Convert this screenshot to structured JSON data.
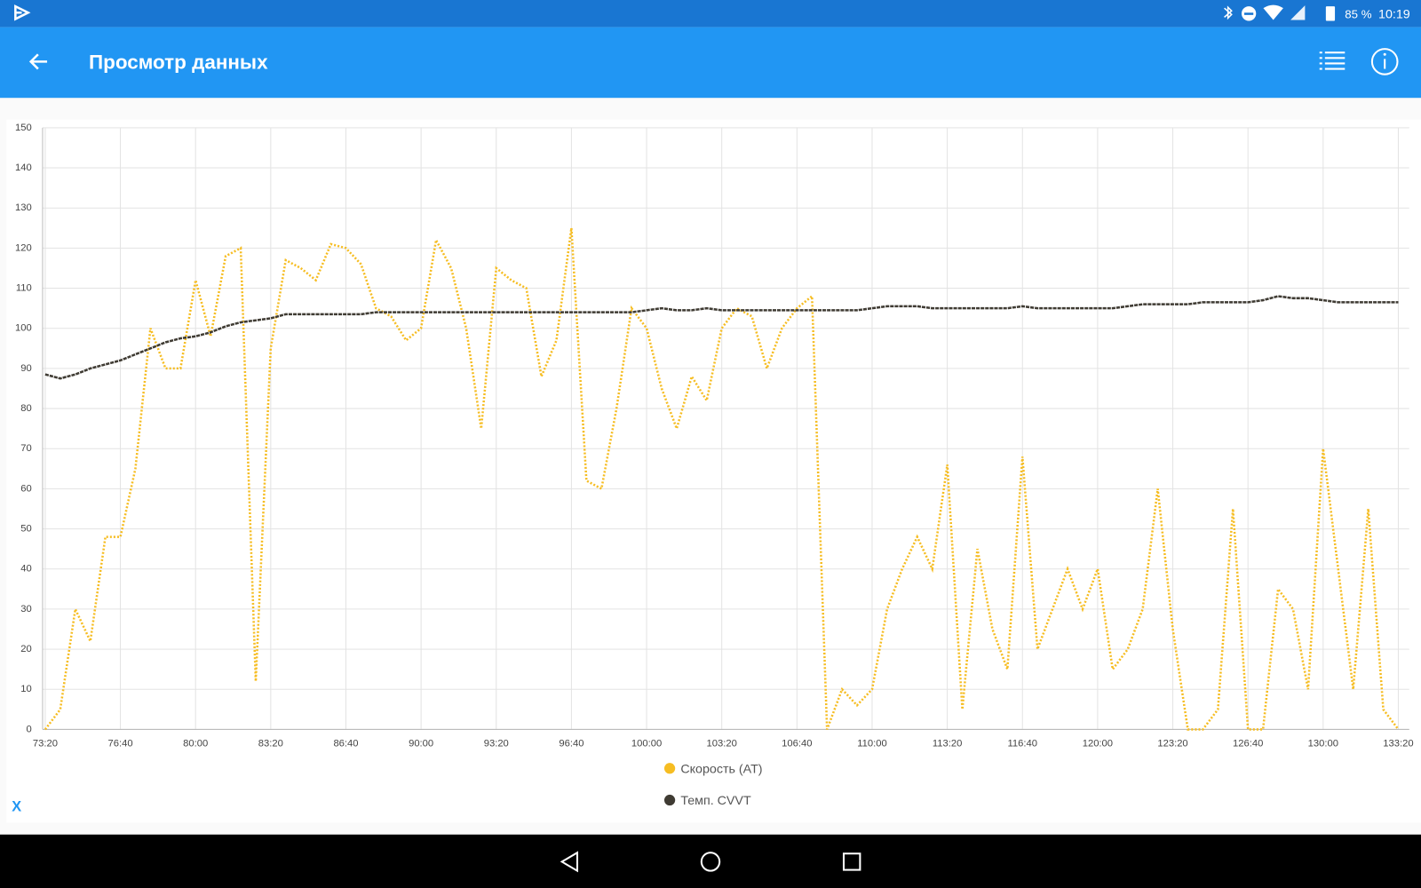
{
  "status_bar": {
    "battery": "85 %",
    "time": "10:19"
  },
  "app_bar": {
    "title": "Просмотр данных"
  },
  "chart_data": {
    "type": "line",
    "x": [
      4400,
      4440,
      4480,
      4520,
      4560,
      4600,
      4640,
      4680,
      4720,
      4760,
      4800,
      4840,
      4880,
      4920,
      4960,
      5000,
      5040,
      5080,
      5120,
      5160,
      5200,
      5240,
      5280,
      5320,
      5360,
      5400,
      5440,
      5480,
      5520,
      5560,
      5600,
      5640,
      5680,
      5720,
      5760,
      5800,
      5840,
      5880,
      5920,
      5960,
      6000,
      6040,
      6080,
      6120,
      6160,
      6200,
      6240,
      6280,
      6320,
      6360,
      6400,
      6440,
      6480,
      6520,
      6560,
      6600,
      6640,
      6680,
      6720,
      6760,
      6800,
      6840,
      6880,
      6920,
      6960,
      7000,
      7040,
      7080,
      7120,
      7160,
      7200,
      7240,
      7280,
      7320,
      7360,
      7400,
      7440,
      7480,
      7520,
      7560,
      7600,
      7640,
      7680,
      7720,
      7760,
      7800,
      7840,
      7880,
      7920,
      7960,
      8000
    ],
    "series": [
      {
        "name": "Скорость (AT)",
        "color": "#f6bd22",
        "values": [
          0,
          5,
          30,
          22,
          48,
          48,
          65,
          100,
          90,
          90,
          112,
          98,
          118,
          120,
          12,
          95,
          117,
          115,
          112,
          121,
          120,
          116,
          105,
          103,
          97,
          100,
          122,
          115,
          100,
          75,
          115,
          112,
          110,
          88,
          97,
          125,
          62,
          60,
          80,
          105,
          100,
          85,
          75,
          88,
          82,
          100,
          105,
          103,
          90,
          100,
          105,
          108,
          0,
          10,
          6,
          10,
          30,
          40,
          48,
          40,
          66,
          5,
          45,
          25,
          15,
          68,
          20,
          30,
          40,
          30,
          40,
          15,
          20,
          30,
          60,
          25,
          0,
          0,
          5,
          55,
          0,
          0,
          35,
          30,
          10,
          70,
          40,
          10,
          55,
          5,
          0
        ]
      },
      {
        "name": "Темп. CVVT",
        "color": "#3f3b33",
        "values": [
          88.5,
          87.5,
          88.5,
          90,
          91,
          92,
          93.5,
          95,
          96.5,
          97.5,
          98,
          99,
          100.5,
          101.5,
          102,
          102.5,
          103.5,
          103.5,
          103.5,
          103.5,
          103.5,
          103.5,
          104,
          104,
          104,
          104,
          104,
          104,
          104,
          104,
          104,
          104,
          104,
          104,
          104,
          104,
          104,
          104,
          104,
          104,
          104.5,
          105,
          104.5,
          104.5,
          105,
          104.5,
          104.5,
          104.5,
          104.5,
          104.5,
          104.5,
          104.5,
          104.5,
          104.5,
          104.5,
          105,
          105.5,
          105.5,
          105.5,
          105,
          105,
          105,
          105,
          105,
          105,
          105.5,
          105,
          105,
          105,
          105,
          105,
          105,
          105.5,
          106,
          106,
          106,
          106,
          106.5,
          106.5,
          106.5,
          106.5,
          107,
          108,
          107.5,
          107.5,
          107,
          106.5,
          106.5,
          106.5,
          106.5,
          106.5
        ]
      }
    ],
    "xlim": [
      4393,
      8029
    ],
    "xticks": [
      {
        "value": 4400,
        "label": "73:20"
      },
      {
        "value": 4600,
        "label": "76:40"
      },
      {
        "value": 4800,
        "label": "80:00"
      },
      {
        "value": 5000,
        "label": "83:20"
      },
      {
        "value": 5200,
        "label": "86:40"
      },
      {
        "value": 5400,
        "label": "90:00"
      },
      {
        "value": 5600,
        "label": "93:20"
      },
      {
        "value": 5800,
        "label": "96:40"
      },
      {
        "value": 6000,
        "label": "100:00"
      },
      {
        "value": 6200,
        "label": "103:20"
      },
      {
        "value": 6400,
        "label": "106:40"
      },
      {
        "value": 6600,
        "label": "110:00"
      },
      {
        "value": 6800,
        "label": "113:20"
      },
      {
        "value": 7000,
        "label": "116:40"
      },
      {
        "value": 7200,
        "label": "120:00"
      },
      {
        "value": 7400,
        "label": "123:20"
      },
      {
        "value": 7600,
        "label": "126:40"
      },
      {
        "value": 7800,
        "label": "130:00"
      },
      {
        "value": 8000,
        "label": "133:20"
      }
    ],
    "ylim": [
      0,
      150
    ],
    "yticks": [
      0,
      10,
      20,
      30,
      40,
      50,
      60,
      70,
      80,
      90,
      100,
      110,
      120,
      130,
      140,
      150
    ],
    "grid": true,
    "legend": "bottom"
  },
  "x_button": "X"
}
